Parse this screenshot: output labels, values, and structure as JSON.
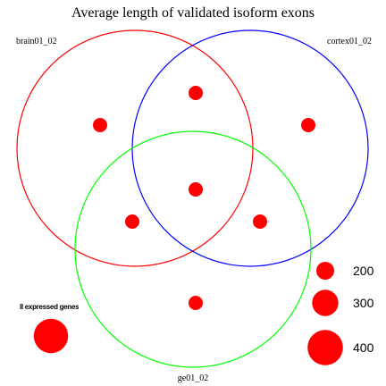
{
  "chart_data": {
    "type": "venn-bubble",
    "title": "Average length of validated isoform exons",
    "sets": [
      {
        "id": "brain",
        "name": "brain01_02",
        "color": "#ff0000"
      },
      {
        "id": "cortex",
        "name": "cortex01_02",
        "color": "#0000ff"
      },
      {
        "id": "ge",
        "name": "ge01_02",
        "color": "#00ff00"
      }
    ],
    "regions": [
      {
        "sets": [
          "brain"
        ],
        "value": 200
      },
      {
        "sets": [
          "cortex"
        ],
        "value": 200
      },
      {
        "sets": [
          "brain",
          "cortex"
        ],
        "value": 200
      },
      {
        "sets": [
          "brain",
          "ge"
        ],
        "value": 200
      },
      {
        "sets": [
          "cortex",
          "ge"
        ],
        "value": 200
      },
      {
        "sets": [
          "brain",
          "cortex",
          "ge"
        ],
        "value": 200
      },
      {
        "sets": [
          "ge"
        ],
        "value": 200
      }
    ],
    "outside": {
      "label": "ll expressed genes",
      "value": 400
    },
    "point_color": "#ff0000",
    "size_legend": {
      "values": [
        200,
        300,
        400
      ],
      "labels": [
        "200",
        "300",
        "400"
      ]
    },
    "legend_position": "bottom-right"
  }
}
